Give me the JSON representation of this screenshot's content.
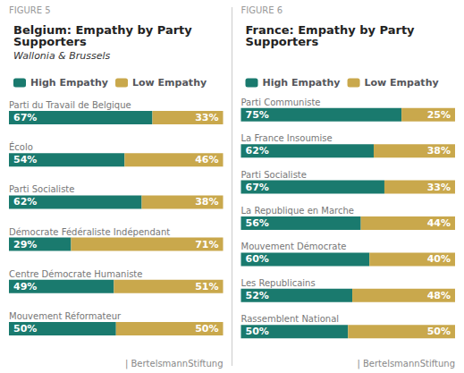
{
  "chart_data": [
    {
      "type": "bar",
      "orientation": "horizontal",
      "stacked": true,
      "title": "Belgium: Empathy by Party\nSupporters",
      "subtitle": "Wallonia & Brussels",
      "annotations": [
        "FIGURE 5",
        "| BertelsmannStiftung"
      ],
      "categories": [
        "Parti du Travail de Belgique",
        "Écolo",
        "Parti Socialiste",
        "Démocrate Fédéraliste Indépendant",
        "Centre Démocrate Humaniste",
        "Mouvement Réformateur"
      ],
      "series": [
        {
          "name": "High Empathy",
          "color": "#1a7a6e",
          "values": [
            67,
            54,
            62,
            29,
            49,
            50
          ],
          "value_labels": [
            "67%",
            "54%",
            "62%",
            "29%",
            "49%",
            "50%"
          ]
        },
        {
          "name": "Low Empathy",
          "color": "#c9a84c",
          "values": [
            33,
            46,
            38,
            71,
            51,
            50
          ],
          "value_labels": [
            "33%",
            "46%",
            "38%",
            "71%",
            "51%",
            "50%"
          ]
        }
      ],
      "xlim": [
        0,
        100
      ],
      "grid": false,
      "legend": "top",
      "data_labels": true,
      "tick_labels": "y"
    },
    {
      "type": "bar",
      "orientation": "horizontal",
      "stacked": true,
      "title": "France: Empathy by Party\nSupporters",
      "annotations": [
        "FIGURE 6",
        "| BertelsmannStiftung"
      ],
      "categories": [
        "Parti Communiste",
        "La France Insoumise",
        "Parti Socialiste",
        "La Republique en Marche",
        "Mouvement Démocrate",
        "Les Republicains",
        "Rassemblent National"
      ],
      "series": [
        {
          "name": "High Empathy",
          "color": "#1a7a6e",
          "values": [
            75,
            62,
            67,
            56,
            60,
            52,
            50
          ],
          "value_labels": [
            "75%",
            "62%",
            "67%",
            "56%",
            "60%",
            "52%",
            "50%"
          ]
        },
        {
          "name": "Low Empathy",
          "color": "#c9a84c",
          "values": [
            25,
            38,
            33,
            44,
            40,
            48,
            50
          ],
          "value_labels": [
            "25%",
            "38%",
            "33%",
            "44%",
            "40%",
            "48%",
            "50%"
          ]
        }
      ],
      "xlim": [
        0,
        100
      ],
      "grid": false,
      "legend": "top",
      "data_labels": true,
      "tick_labels": "y"
    }
  ]
}
